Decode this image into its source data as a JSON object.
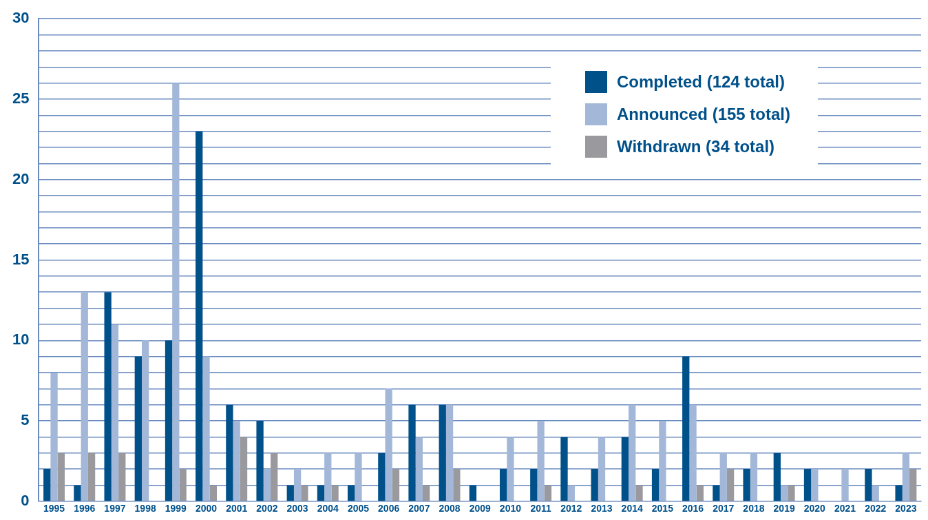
{
  "chart_data": {
    "type": "bar",
    "categories": [
      "1995",
      "1996",
      "1997",
      "1998",
      "1999",
      "2000",
      "2001",
      "2002",
      "2003",
      "2004",
      "2005",
      "2006",
      "2007",
      "2008",
      "2009",
      "2010",
      "2011",
      "2012",
      "2013",
      "2014",
      "2015",
      "2016",
      "2017",
      "2018",
      "2019",
      "2020",
      "2021",
      "2022",
      "2023"
    ],
    "series": [
      {
        "name": "Completed (124 total)",
        "color": "#00508a",
        "values": [
          2,
          1,
          13,
          9,
          10,
          23,
          6,
          5,
          1,
          1,
          1,
          3,
          6,
          6,
          1,
          2,
          2,
          4,
          2,
          4,
          2,
          9,
          1,
          2,
          3,
          2,
          0,
          2,
          1
        ]
      },
      {
        "name": "Announced (155 total)",
        "color": "#a3b8d8",
        "values": [
          8,
          13,
          11,
          10,
          26,
          9,
          5,
          2,
          2,
          3,
          3,
          7,
          4,
          6,
          0,
          4,
          5,
          1,
          4,
          6,
          5,
          6,
          3,
          3,
          1,
          2,
          2,
          1,
          3
        ]
      },
      {
        "name": "Withdrawn (34 total)",
        "color": "#9a9a9e",
        "values": [
          3,
          3,
          3,
          0,
          2,
          1,
          4,
          3,
          1,
          1,
          0,
          2,
          1,
          2,
          0,
          0,
          1,
          0,
          0,
          1,
          0,
          1,
          2,
          0,
          1,
          0,
          0,
          0,
          2
        ]
      }
    ],
    "ylim": [
      0,
      30
    ],
    "yticks": [
      0,
      {
        "value": 1,
        "label": null
      },
      {
        "value": 2,
        "label": null
      },
      {
        "value": 3,
        "label": null
      },
      {
        "value": 4,
        "label": null
      },
      5,
      {
        "value": 6,
        "label": null
      },
      {
        "value": 7,
        "label": null
      },
      {
        "value": 8,
        "label": null
      },
      {
        "value": 9,
        "label": null
      },
      10,
      {
        "value": 11,
        "label": null
      },
      {
        "value": 12,
        "label": null
      },
      {
        "value": 13,
        "label": null
      },
      {
        "value": 14,
        "label": null
      },
      15,
      {
        "value": 16,
        "label": null
      },
      {
        "value": 17,
        "label": null
      },
      {
        "value": 18,
        "label": null
      },
      {
        "value": 19,
        "label": null
      },
      20,
      {
        "value": 21,
        "label": null
      },
      {
        "value": 22,
        "label": null
      },
      {
        "value": 23,
        "label": null
      },
      {
        "value": 24,
        "label": null
      },
      25,
      {
        "value": 26,
        "label": null
      },
      {
        "value": 27,
        "label": null
      },
      {
        "value": 28,
        "label": null
      },
      {
        "value": 29,
        "label": null
      },
      30
    ],
    "grid": "y",
    "legend": "top right"
  }
}
